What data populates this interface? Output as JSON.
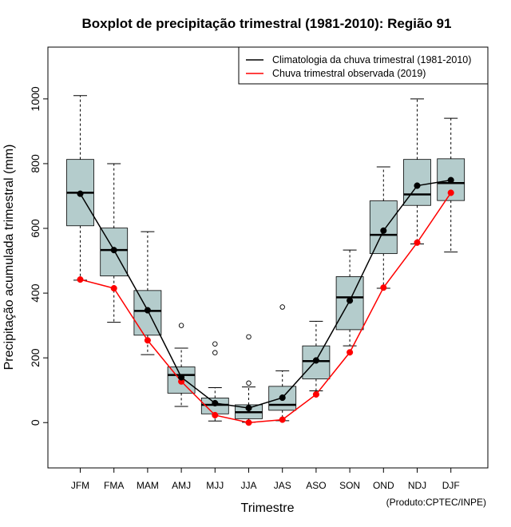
{
  "chart_data": {
    "type": "box",
    "title": "Boxplot de precipitação trimestral (1981-2010): Região 91",
    "xlabel": "Trimestre",
    "ylabel": "Precipitação acumulada trimestral (mm)",
    "credit": "(Produto:CPTEC/INPE)",
    "ylim": [
      -140,
      1160
    ],
    "yticks": [
      0,
      200,
      400,
      600,
      800,
      1000
    ],
    "categories": [
      "JFM",
      "FMA",
      "MAM",
      "AMJ",
      "MJJ",
      "JJA",
      "JAS",
      "ASO",
      "SON",
      "OND",
      "NDJ",
      "DJF"
    ],
    "boxes": [
      {
        "label": "JFM",
        "whisker_low": 440,
        "q1": 608,
        "median": 710,
        "q3": 813,
        "whisker_high": 1010,
        "outliers": []
      },
      {
        "label": "FMA",
        "whisker_low": 310,
        "q1": 453,
        "median": 533,
        "q3": 601,
        "whisker_high": 800,
        "outliers": []
      },
      {
        "label": "MAM",
        "whisker_low": 210,
        "q1": 270,
        "median": 345,
        "q3": 408,
        "whisker_high": 590,
        "outliers": []
      },
      {
        "label": "AMJ",
        "whisker_low": 50,
        "q1": 91,
        "median": 147,
        "q3": 172,
        "whisker_high": 230,
        "outliers": [
          300
        ]
      },
      {
        "label": "MJJ",
        "whisker_low": 5,
        "q1": 27,
        "median": 55,
        "q3": 76,
        "whisker_high": 108,
        "outliers": [
          243,
          216
        ]
      },
      {
        "label": "JJA",
        "whisker_low": 1,
        "q1": 12,
        "median": 32,
        "q3": 55,
        "whisker_high": 110,
        "outliers": [
          265,
          122
        ]
      },
      {
        "label": "JAS",
        "whisker_low": 6,
        "q1": 38,
        "median": 55,
        "q3": 112,
        "whisker_high": 160,
        "outliers": [
          357
        ]
      },
      {
        "label": "ASO",
        "whisker_low": 98,
        "q1": 135,
        "median": 190,
        "q3": 237,
        "whisker_high": 313,
        "outliers": []
      },
      {
        "label": "SON",
        "whisker_low": 237,
        "q1": 287,
        "median": 387,
        "q3": 451,
        "whisker_high": 533,
        "outliers": []
      },
      {
        "label": "OND",
        "whisker_low": 415,
        "q1": 522,
        "median": 580,
        "q3": 685,
        "whisker_high": 790,
        "outliers": []
      },
      {
        "label": "NDJ",
        "whisker_low": 552,
        "q1": 671,
        "median": 705,
        "q3": 813,
        "whisker_high": 1000,
        "outliers": []
      },
      {
        "label": "DJF",
        "whisker_low": 527,
        "q1": 686,
        "median": 740,
        "q3": 815,
        "whisker_high": 940,
        "outliers": []
      }
    ],
    "series": [
      {
        "name": "Climatologia da chuva trimestral (1981-2010)",
        "color": "#000000",
        "values": [
          707,
          533,
          347,
          140,
          60,
          45,
          77,
          192,
          377,
          593,
          732,
          749
        ]
      },
      {
        "name": "Chuva trimestral observada (2019)",
        "color": "#ff0000",
        "values": [
          442,
          415,
          254,
          127,
          23,
          0,
          9,
          87,
          217,
          417,
          556,
          710
        ]
      }
    ],
    "box_fill": "#b4cccc",
    "legend_position": "top-right"
  }
}
